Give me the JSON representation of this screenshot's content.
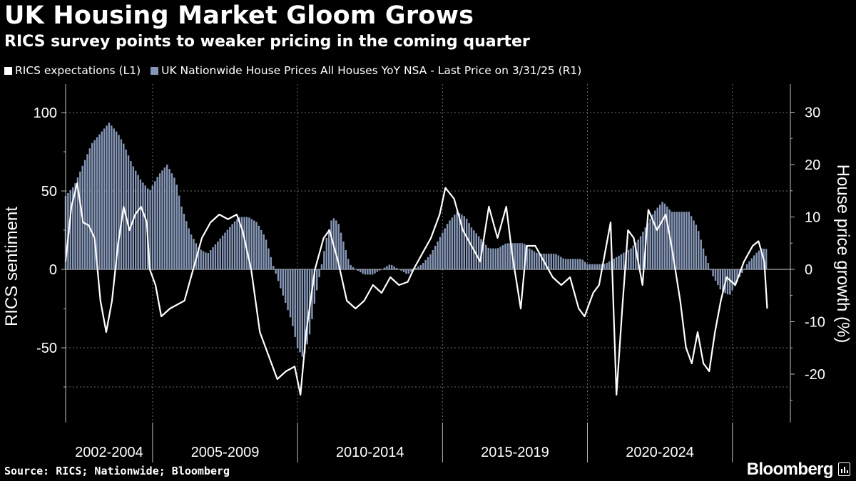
{
  "title": "UK Housing Market Gloom Grows",
  "subtitle": "RICS survey points to weaker pricing in the coming quarter",
  "source": "Source: RICS; Nationwide; Bloomberg",
  "brand": "Bloomberg",
  "colors": {
    "background": "#000000",
    "line": "#ffffff",
    "bars": "#8596b6",
    "grid": "#6b6b6b"
  },
  "chart_data": {
    "type": "bar+line",
    "legend": [
      {
        "label": "RICS expectations (L1)",
        "color": "#ffffff"
      },
      {
        "label": "UK Nationwide House Prices All Houses YoY NSA - Last Price on 3/31/25 (R1)",
        "color": "#8596b6"
      }
    ],
    "y_left": {
      "label": "RICS sentiment",
      "range": [
        -97,
        100
      ],
      "ticks": [
        100,
        50,
        0,
        -50
      ]
    },
    "y_right": {
      "label": "House price growth (%)",
      "range": [
        -29,
        30
      ],
      "ticks": [
        30,
        20,
        10,
        0,
        -10,
        -20
      ]
    },
    "x": {
      "start": 2001.0,
      "end": 2026.0,
      "period_labels": [
        "2002-2004",
        "2005-2009",
        "2010-2014",
        "2015-2019",
        "2020-2024"
      ],
      "separators": [
        2004.0,
        2009.0,
        2014.0,
        2019.0,
        2024.0
      ]
    },
    "series": [
      {
        "name": "UK Nationwide House Prices All Houses YoY NSA",
        "axis": "right",
        "kind": "bar",
        "points": [
          [
            2001.0,
            14
          ],
          [
            2001.3,
            16
          ],
          [
            2001.6,
            20
          ],
          [
            2001.9,
            24
          ],
          [
            2002.2,
            26
          ],
          [
            2002.5,
            28
          ],
          [
            2002.8,
            26
          ],
          [
            2003.0,
            24
          ],
          [
            2003.3,
            20
          ],
          [
            2003.6,
            17
          ],
          [
            2003.9,
            15
          ],
          [
            2004.2,
            18
          ],
          [
            2004.5,
            20
          ],
          [
            2004.8,
            17
          ],
          [
            2005.0,
            12
          ],
          [
            2005.3,
            7
          ],
          [
            2005.6,
            4
          ],
          [
            2005.9,
            3
          ],
          [
            2006.2,
            5
          ],
          [
            2006.5,
            7
          ],
          [
            2006.8,
            9
          ],
          [
            2007.0,
            10
          ],
          [
            2007.3,
            10
          ],
          [
            2007.6,
            9
          ],
          [
            2007.9,
            6
          ],
          [
            2008.2,
            0
          ],
          [
            2008.5,
            -5
          ],
          [
            2008.8,
            -10
          ],
          [
            2009.0,
            -15
          ],
          [
            2009.2,
            -17
          ],
          [
            2009.4,
            -13
          ],
          [
            2009.6,
            -6
          ],
          [
            2009.8,
            0
          ],
          [
            2010.0,
            6
          ],
          [
            2010.2,
            10
          ],
          [
            2010.4,
            9
          ],
          [
            2010.6,
            5
          ],
          [
            2010.8,
            1
          ],
          [
            2011.0,
            0
          ],
          [
            2011.3,
            -1
          ],
          [
            2011.6,
            -1
          ],
          [
            2011.9,
            0
          ],
          [
            2012.2,
            1
          ],
          [
            2012.5,
            0
          ],
          [
            2012.8,
            -1
          ],
          [
            2013.0,
            0
          ],
          [
            2013.3,
            1
          ],
          [
            2013.6,
            3
          ],
          [
            2013.9,
            6
          ],
          [
            2014.2,
            9
          ],
          [
            2014.5,
            11
          ],
          [
            2014.8,
            10
          ],
          [
            2015.0,
            8
          ],
          [
            2015.3,
            6
          ],
          [
            2015.6,
            4
          ],
          [
            2015.9,
            4
          ],
          [
            2016.2,
            5
          ],
          [
            2016.5,
            5
          ],
          [
            2016.8,
            5
          ],
          [
            2017.0,
            4
          ],
          [
            2017.3,
            3
          ],
          [
            2017.6,
            3
          ],
          [
            2017.9,
            3
          ],
          [
            2018.2,
            2
          ],
          [
            2018.5,
            2
          ],
          [
            2018.8,
            2
          ],
          [
            2019.0,
            1
          ],
          [
            2019.3,
            1
          ],
          [
            2019.6,
            1
          ],
          [
            2019.9,
            2
          ],
          [
            2020.2,
            3
          ],
          [
            2020.5,
            4
          ],
          [
            2020.8,
            6
          ],
          [
            2021.0,
            8
          ],
          [
            2021.3,
            11
          ],
          [
            2021.6,
            13
          ],
          [
            2021.9,
            11
          ],
          [
            2022.2,
            11
          ],
          [
            2022.5,
            11
          ],
          [
            2022.8,
            8
          ],
          [
            2023.0,
            4
          ],
          [
            2023.3,
            -1
          ],
          [
            2023.6,
            -4
          ],
          [
            2023.9,
            -5
          ],
          [
            2024.2,
            -2
          ],
          [
            2024.5,
            1
          ],
          [
            2024.8,
            3
          ],
          [
            2025.0,
            4
          ],
          [
            2025.2,
            3.9
          ]
        ]
      },
      {
        "name": "RICS expectations",
        "axis": "left",
        "kind": "line",
        "points": [
          [
            2001.0,
            5
          ],
          [
            2001.2,
            40
          ],
          [
            2001.4,
            55
          ],
          [
            2001.6,
            30
          ],
          [
            2001.8,
            28
          ],
          [
            2002.0,
            20
          ],
          [
            2002.2,
            -20
          ],
          [
            2002.4,
            -40
          ],
          [
            2002.6,
            -20
          ],
          [
            2002.8,
            15
          ],
          [
            2003.0,
            40
          ],
          [
            2003.2,
            25
          ],
          [
            2003.4,
            35
          ],
          [
            2003.6,
            40
          ],
          [
            2003.8,
            30
          ],
          [
            2003.9,
            0
          ],
          [
            2004.1,
            -10
          ],
          [
            2004.3,
            -30
          ],
          [
            2004.6,
            -25
          ],
          [
            2004.9,
            -22
          ],
          [
            2005.1,
            -20
          ],
          [
            2005.4,
            0
          ],
          [
            2005.7,
            20
          ],
          [
            2006.0,
            30
          ],
          [
            2006.3,
            35
          ],
          [
            2006.6,
            32
          ],
          [
            2006.9,
            35
          ],
          [
            2007.1,
            25
          ],
          [
            2007.4,
            0
          ],
          [
            2007.7,
            -40
          ],
          [
            2008.0,
            -55
          ],
          [
            2008.3,
            -70
          ],
          [
            2008.6,
            -65
          ],
          [
            2008.9,
            -62
          ],
          [
            2009.1,
            -80
          ],
          [
            2009.3,
            -40
          ],
          [
            2009.6,
            0
          ],
          [
            2009.9,
            20
          ],
          [
            2010.1,
            25
          ],
          [
            2010.4,
            5
          ],
          [
            2010.7,
            -20
          ],
          [
            2011.0,
            -25
          ],
          [
            2011.3,
            -20
          ],
          [
            2011.6,
            -10
          ],
          [
            2011.9,
            -15
          ],
          [
            2012.2,
            -5
          ],
          [
            2012.5,
            -10
          ],
          [
            2012.8,
            -8
          ],
          [
            2013.0,
            0
          ],
          [
            2013.3,
            10
          ],
          [
            2013.6,
            20
          ],
          [
            2013.9,
            35
          ],
          [
            2014.1,
            52
          ],
          [
            2014.4,
            45
          ],
          [
            2014.7,
            25
          ],
          [
            2015.0,
            15
          ],
          [
            2015.3,
            5
          ],
          [
            2015.6,
            40
          ],
          [
            2015.9,
            20
          ],
          [
            2016.2,
            40
          ],
          [
            2016.4,
            10
          ],
          [
            2016.7,
            -25
          ],
          [
            2016.9,
            15
          ],
          [
            2017.2,
            15
          ],
          [
            2017.5,
            5
          ],
          [
            2017.8,
            -5
          ],
          [
            2018.1,
            -10
          ],
          [
            2018.4,
            -5
          ],
          [
            2018.7,
            -25
          ],
          [
            2018.9,
            -30
          ],
          [
            2019.2,
            -15
          ],
          [
            2019.4,
            -10
          ],
          [
            2019.6,
            10
          ],
          [
            2019.8,
            30
          ],
          [
            2020.0,
            -80
          ],
          [
            2020.2,
            -25
          ],
          [
            2020.4,
            25
          ],
          [
            2020.6,
            20
          ],
          [
            2020.9,
            -10
          ],
          [
            2021.1,
            38
          ],
          [
            2021.4,
            25
          ],
          [
            2021.7,
            35
          ],
          [
            2021.9,
            15
          ],
          [
            2022.2,
            -20
          ],
          [
            2022.4,
            -50
          ],
          [
            2022.6,
            -60
          ],
          [
            2022.8,
            -40
          ],
          [
            2023.0,
            -60
          ],
          [
            2023.2,
            -65
          ],
          [
            2023.4,
            -40
          ],
          [
            2023.6,
            -20
          ],
          [
            2023.8,
            -5
          ],
          [
            2024.1,
            -10
          ],
          [
            2024.4,
            5
          ],
          [
            2024.7,
            15
          ],
          [
            2024.9,
            18
          ],
          [
            2025.1,
            5
          ],
          [
            2025.2,
            -25
          ]
        ]
      }
    ]
  }
}
